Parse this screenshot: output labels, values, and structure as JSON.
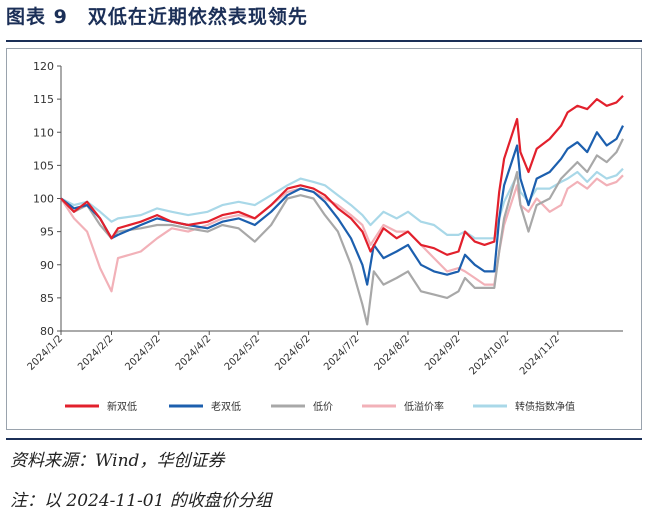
{
  "figure": {
    "title": "图表 9　双低在近期依然表现领先",
    "source": "资料来源：Wind，华创证券",
    "note": "注：以 2024-11-01 的收盘价分组"
  },
  "chart_data": {
    "type": "line",
    "ylim": [
      80,
      120
    ],
    "yticks": [
      80,
      85,
      90,
      95,
      100,
      105,
      110,
      115,
      120
    ],
    "x_start": "2024-01-02",
    "x_end": "2024-12-12",
    "xticks": [
      "2024/1/2",
      "2024/2/2",
      "2024/3/2",
      "2024/4/2",
      "2024/5/2",
      "2024/6/2",
      "2024/7/2",
      "2024/8/2",
      "2024/9/2",
      "2024/10/2",
      "2024/11/2"
    ],
    "xtick_dates": [
      "2024-01-02",
      "2024-02-02",
      "2024-03-02",
      "2024-04-02",
      "2024-05-02",
      "2024-06-02",
      "2024-07-02",
      "2024-08-02",
      "2024-09-02",
      "2024-10-02",
      "2024-11-02"
    ],
    "grid": false,
    "legend_position": "bottom",
    "series": [
      {
        "name": "新双低",
        "color": "#e2202c",
        "width": 2.2,
        "points": [
          [
            "2024-01-02",
            100
          ],
          [
            "2024-01-10",
            98
          ],
          [
            "2024-01-18",
            99.5
          ],
          [
            "2024-01-26",
            97
          ],
          [
            "2024-02-02",
            94
          ],
          [
            "2024-02-06",
            95.5
          ],
          [
            "2024-02-20",
            96.5
          ],
          [
            "2024-03-01",
            97.5
          ],
          [
            "2024-03-10",
            96.5
          ],
          [
            "2024-03-20",
            96
          ],
          [
            "2024-04-01",
            96.5
          ],
          [
            "2024-04-10",
            97.5
          ],
          [
            "2024-04-20",
            98
          ],
          [
            "2024-04-30",
            97
          ],
          [
            "2024-05-10",
            99
          ],
          [
            "2024-05-20",
            101.5
          ],
          [
            "2024-05-28",
            102
          ],
          [
            "2024-06-05",
            101.5
          ],
          [
            "2024-06-12",
            100.5
          ],
          [
            "2024-06-20",
            98.5
          ],
          [
            "2024-06-28",
            97
          ],
          [
            "2024-07-05",
            95
          ],
          [
            "2024-07-10",
            92
          ],
          [
            "2024-07-18",
            95.5
          ],
          [
            "2024-07-26",
            94
          ],
          [
            "2024-08-02",
            95
          ],
          [
            "2024-08-10",
            93
          ],
          [
            "2024-08-18",
            92.5
          ],
          [
            "2024-08-26",
            91.5
          ],
          [
            "2024-09-02",
            92
          ],
          [
            "2024-09-06",
            95
          ],
          [
            "2024-09-12",
            93.5
          ],
          [
            "2024-09-18",
            93
          ],
          [
            "2024-09-24",
            93.5
          ],
          [
            "2024-09-27",
            101
          ],
          [
            "2024-09-30",
            106
          ],
          [
            "2024-10-08",
            112
          ],
          [
            "2024-10-10",
            107
          ],
          [
            "2024-10-15",
            104
          ],
          [
            "2024-10-20",
            107.5
          ],
          [
            "2024-10-28",
            109
          ],
          [
            "2024-11-04",
            111
          ],
          [
            "2024-11-08",
            113
          ],
          [
            "2024-11-14",
            114
          ],
          [
            "2024-11-20",
            113.5
          ],
          [
            "2024-11-26",
            115
          ],
          [
            "2024-12-02",
            114
          ],
          [
            "2024-12-08",
            114.5
          ],
          [
            "2024-12-12",
            115.5
          ]
        ]
      },
      {
        "name": "老双低",
        "color": "#1c5fae",
        "width": 2.2,
        "points": [
          [
            "2024-01-02",
            100
          ],
          [
            "2024-01-10",
            98.5
          ],
          [
            "2024-01-18",
            99
          ],
          [
            "2024-01-26",
            97
          ],
          [
            "2024-02-02",
            94
          ],
          [
            "2024-02-06",
            94.5
          ],
          [
            "2024-02-20",
            96
          ],
          [
            "2024-03-01",
            97
          ],
          [
            "2024-03-10",
            96.5
          ],
          [
            "2024-03-20",
            96
          ],
          [
            "2024-04-01",
            95.5
          ],
          [
            "2024-04-10",
            96.5
          ],
          [
            "2024-04-20",
            97
          ],
          [
            "2024-04-30",
            96
          ],
          [
            "2024-05-10",
            98
          ],
          [
            "2024-05-20",
            100.5
          ],
          [
            "2024-05-28",
            101.5
          ],
          [
            "2024-06-05",
            101
          ],
          [
            "2024-06-12",
            99.5
          ],
          [
            "2024-06-20",
            97
          ],
          [
            "2024-06-28",
            94
          ],
          [
            "2024-07-05",
            90
          ],
          [
            "2024-07-08",
            87
          ],
          [
            "2024-07-12",
            93
          ],
          [
            "2024-07-18",
            91
          ],
          [
            "2024-07-26",
            92
          ],
          [
            "2024-08-02",
            93
          ],
          [
            "2024-08-10",
            90
          ],
          [
            "2024-08-18",
            89
          ],
          [
            "2024-08-26",
            88.5
          ],
          [
            "2024-09-02",
            89
          ],
          [
            "2024-09-06",
            91.5
          ],
          [
            "2024-09-12",
            90
          ],
          [
            "2024-09-18",
            89
          ],
          [
            "2024-09-24",
            89
          ],
          [
            "2024-09-27",
            97
          ],
          [
            "2024-09-30",
            102
          ],
          [
            "2024-10-08",
            108
          ],
          [
            "2024-10-10",
            103
          ],
          [
            "2024-10-15",
            99
          ],
          [
            "2024-10-20",
            103
          ],
          [
            "2024-10-28",
            104
          ],
          [
            "2024-11-04",
            106
          ],
          [
            "2024-11-08",
            107.5
          ],
          [
            "2024-11-14",
            108.5
          ],
          [
            "2024-11-20",
            107
          ],
          [
            "2024-11-26",
            110
          ],
          [
            "2024-12-02",
            108
          ],
          [
            "2024-12-08",
            109
          ],
          [
            "2024-12-12",
            111
          ]
        ]
      },
      {
        "name": "低价",
        "color": "#a8a8a8",
        "width": 2.2,
        "points": [
          [
            "2024-01-02",
            100
          ],
          [
            "2024-01-10",
            98
          ],
          [
            "2024-01-18",
            99
          ],
          [
            "2024-01-26",
            96
          ],
          [
            "2024-02-02",
            94
          ],
          [
            "2024-02-06",
            95
          ],
          [
            "2024-02-20",
            95.5
          ],
          [
            "2024-03-01",
            96
          ],
          [
            "2024-03-10",
            96
          ],
          [
            "2024-03-20",
            95.5
          ],
          [
            "2024-04-01",
            95
          ],
          [
            "2024-04-10",
            96
          ],
          [
            "2024-04-20",
            95.5
          ],
          [
            "2024-04-30",
            93.5
          ],
          [
            "2024-05-10",
            96
          ],
          [
            "2024-05-20",
            100
          ],
          [
            "2024-05-28",
            100.5
          ],
          [
            "2024-06-05",
            100
          ],
          [
            "2024-06-12",
            97.5
          ],
          [
            "2024-06-20",
            95
          ],
          [
            "2024-06-28",
            90
          ],
          [
            "2024-07-05",
            84
          ],
          [
            "2024-07-08",
            81
          ],
          [
            "2024-07-12",
            89
          ],
          [
            "2024-07-18",
            87
          ],
          [
            "2024-07-26",
            88
          ],
          [
            "2024-08-02",
            89
          ],
          [
            "2024-08-10",
            86
          ],
          [
            "2024-08-18",
            85.5
          ],
          [
            "2024-08-26",
            85
          ],
          [
            "2024-09-02",
            86
          ],
          [
            "2024-09-06",
            88
          ],
          [
            "2024-09-12",
            86.5
          ],
          [
            "2024-09-18",
            86.5
          ],
          [
            "2024-09-24",
            86.5
          ],
          [
            "2024-09-27",
            92
          ],
          [
            "2024-09-30",
            97
          ],
          [
            "2024-10-08",
            104
          ],
          [
            "2024-10-10",
            99
          ],
          [
            "2024-10-15",
            95
          ],
          [
            "2024-10-20",
            99
          ],
          [
            "2024-10-28",
            100
          ],
          [
            "2024-11-04",
            103
          ],
          [
            "2024-11-08",
            104
          ],
          [
            "2024-11-14",
            105.5
          ],
          [
            "2024-11-20",
            104
          ],
          [
            "2024-11-26",
            106.5
          ],
          [
            "2024-12-02",
            105.5
          ],
          [
            "2024-12-08",
            107
          ],
          [
            "2024-12-12",
            109
          ]
        ]
      },
      {
        "name": "低溢价率",
        "color": "#f2b1b8",
        "width": 2.2,
        "points": [
          [
            "2024-01-02",
            100
          ],
          [
            "2024-01-10",
            97
          ],
          [
            "2024-01-18",
            95
          ],
          [
            "2024-01-26",
            89.5
          ],
          [
            "2024-02-02",
            86
          ],
          [
            "2024-02-06",
            91
          ],
          [
            "2024-02-20",
            92
          ],
          [
            "2024-03-01",
            94
          ],
          [
            "2024-03-10",
            95.5
          ],
          [
            "2024-03-20",
            95
          ],
          [
            "2024-04-01",
            96
          ],
          [
            "2024-04-10",
            97
          ],
          [
            "2024-04-20",
            97.5
          ],
          [
            "2024-04-30",
            97
          ],
          [
            "2024-05-10",
            99
          ],
          [
            "2024-05-20",
            101
          ],
          [
            "2024-05-28",
            101.5
          ],
          [
            "2024-06-05",
            101
          ],
          [
            "2024-06-12",
            100
          ],
          [
            "2024-06-20",
            99
          ],
          [
            "2024-06-28",
            97.5
          ],
          [
            "2024-07-05",
            96
          ],
          [
            "2024-07-10",
            93
          ],
          [
            "2024-07-18",
            96
          ],
          [
            "2024-07-26",
            95
          ],
          [
            "2024-08-02",
            95
          ],
          [
            "2024-08-10",
            93
          ],
          [
            "2024-08-18",
            91
          ],
          [
            "2024-08-26",
            89
          ],
          [
            "2024-09-02",
            89.5
          ],
          [
            "2024-09-06",
            89
          ],
          [
            "2024-09-12",
            88
          ],
          [
            "2024-09-18",
            87
          ],
          [
            "2024-09-24",
            87
          ],
          [
            "2024-09-27",
            92
          ],
          [
            "2024-09-30",
            96
          ],
          [
            "2024-10-08",
            102
          ],
          [
            "2024-10-10",
            99
          ],
          [
            "2024-10-15",
            98
          ],
          [
            "2024-10-20",
            100
          ],
          [
            "2024-10-28",
            98
          ],
          [
            "2024-11-04",
            99
          ],
          [
            "2024-11-08",
            101.5
          ],
          [
            "2024-11-14",
            102.5
          ],
          [
            "2024-11-20",
            101.5
          ],
          [
            "2024-11-26",
            103
          ],
          [
            "2024-12-02",
            102
          ],
          [
            "2024-12-08",
            102.5
          ],
          [
            "2024-12-12",
            103.5
          ]
        ]
      },
      {
        "name": "转债指数净值",
        "color": "#a9d8e8",
        "width": 2.2,
        "points": [
          [
            "2024-01-02",
            100
          ],
          [
            "2024-01-10",
            99
          ],
          [
            "2024-01-18",
            99.5
          ],
          [
            "2024-01-26",
            98
          ],
          [
            "2024-02-02",
            96.5
          ],
          [
            "2024-02-06",
            97
          ],
          [
            "2024-02-20",
            97.5
          ],
          [
            "2024-03-01",
            98.5
          ],
          [
            "2024-03-10",
            98
          ],
          [
            "2024-03-20",
            97.5
          ],
          [
            "2024-04-01",
            98
          ],
          [
            "2024-04-10",
            99
          ],
          [
            "2024-04-20",
            99.5
          ],
          [
            "2024-04-30",
            99
          ],
          [
            "2024-05-10",
            100.5
          ],
          [
            "2024-05-20",
            102
          ],
          [
            "2024-05-28",
            103
          ],
          [
            "2024-06-05",
            102.5
          ],
          [
            "2024-06-12",
            102
          ],
          [
            "2024-06-20",
            100.5
          ],
          [
            "2024-06-28",
            99
          ],
          [
            "2024-07-05",
            97.5
          ],
          [
            "2024-07-10",
            96
          ],
          [
            "2024-07-18",
            98
          ],
          [
            "2024-07-26",
            97
          ],
          [
            "2024-08-02",
            98
          ],
          [
            "2024-08-10",
            96.5
          ],
          [
            "2024-08-18",
            96
          ],
          [
            "2024-08-26",
            94.5
          ],
          [
            "2024-09-02",
            94.5
          ],
          [
            "2024-09-06",
            95
          ],
          [
            "2024-09-12",
            94
          ],
          [
            "2024-09-18",
            94
          ],
          [
            "2024-09-24",
            94
          ],
          [
            "2024-09-27",
            97
          ],
          [
            "2024-09-30",
            99.5
          ],
          [
            "2024-10-08",
            103.5
          ],
          [
            "2024-10-10",
            101
          ],
          [
            "2024-10-15",
            99.5
          ],
          [
            "2024-10-20",
            101.5
          ],
          [
            "2024-10-28",
            101.5
          ],
          [
            "2024-11-04",
            102.5
          ],
          [
            "2024-11-08",
            103
          ],
          [
            "2024-11-14",
            104
          ],
          [
            "2024-11-20",
            102.5
          ],
          [
            "2024-11-26",
            104
          ],
          [
            "2024-12-02",
            103
          ],
          [
            "2024-12-08",
            103.5
          ],
          [
            "2024-12-12",
            104.5
          ]
        ]
      }
    ]
  }
}
